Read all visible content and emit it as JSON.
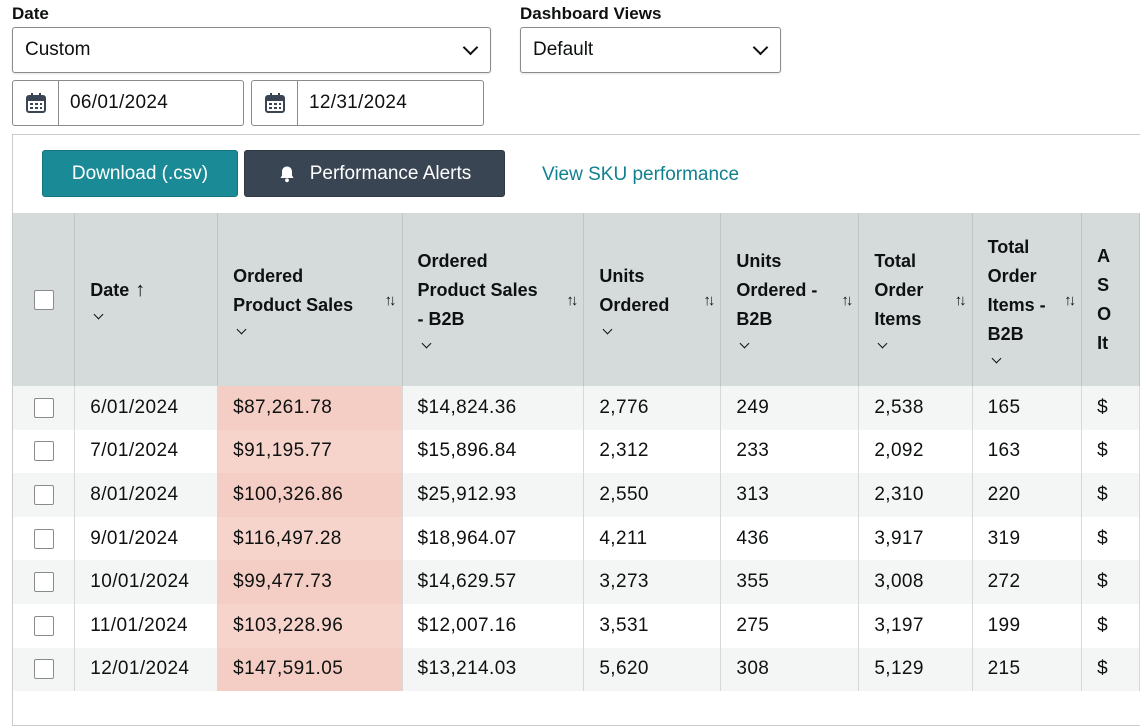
{
  "filters": {
    "date_label": "Date",
    "date_value": "Custom",
    "views_label": "Dashboard Views",
    "views_value": "Default",
    "start_date": "06/01/2024",
    "end_date": "12/31/2024"
  },
  "toolbar": {
    "download_label": "Download (.csv)",
    "alerts_label": "Performance Alerts",
    "sku_link": "View SKU performance"
  },
  "table": {
    "columns": [
      {
        "lines": [
          "Date"
        ],
        "sort": "↑"
      },
      {
        "lines": [
          "Ordered",
          "Product Sales"
        ],
        "sort": "↑↓"
      },
      {
        "lines": [
          "Ordered",
          "Product Sales",
          "- B2B"
        ],
        "sort": "↑↓"
      },
      {
        "lines": [
          "Units",
          "Ordered"
        ],
        "sort": "↑↓"
      },
      {
        "lines": [
          "Units",
          "Ordered -",
          "B2B"
        ],
        "sort": "↑↓"
      },
      {
        "lines": [
          "Total",
          "Order",
          "Items"
        ],
        "sort": "↑↓"
      },
      {
        "lines": [
          "Total",
          "Order",
          "Items -",
          "B2B"
        ],
        "sort": "↑↓"
      },
      {
        "lines": [
          "A",
          "S",
          "O",
          "It"
        ],
        "sort": ""
      }
    ],
    "rows": [
      [
        "6/01/2024",
        "$87,261.78",
        "$14,824.36",
        "2,776",
        "249",
        "2,538",
        "165",
        "$"
      ],
      [
        "7/01/2024",
        "$91,195.77",
        "$15,896.84",
        "2,312",
        "233",
        "2,092",
        "163",
        "$"
      ],
      [
        "8/01/2024",
        "$100,326.86",
        "$25,912.93",
        "2,550",
        "313",
        "2,310",
        "220",
        "$"
      ],
      [
        "9/01/2024",
        "$116,497.28",
        "$18,964.07",
        "4,211",
        "436",
        "3,917",
        "319",
        "$"
      ],
      [
        "10/01/2024",
        "$99,477.73",
        "$14,629.57",
        "3,273",
        "355",
        "3,008",
        "272",
        "$"
      ],
      [
        "11/01/2024",
        "$103,228.96",
        "$12,007.16",
        "3,531",
        "275",
        "3,197",
        "199",
        "$"
      ],
      [
        "12/01/2024",
        "$147,591.05",
        "$13,214.03",
        "5,620",
        "308",
        "5,129",
        "215",
        "$"
      ]
    ]
  },
  "colors": {
    "download_button": "#1a8a96",
    "alerts_button": "#3a4553",
    "link": "#11808f",
    "header_bg": "#d5dbdb",
    "highlight": "#f6d3cb"
  },
  "icons": [
    "calendar-icon",
    "bell-icon",
    "chevron-down-icon",
    "sort-icon"
  ]
}
